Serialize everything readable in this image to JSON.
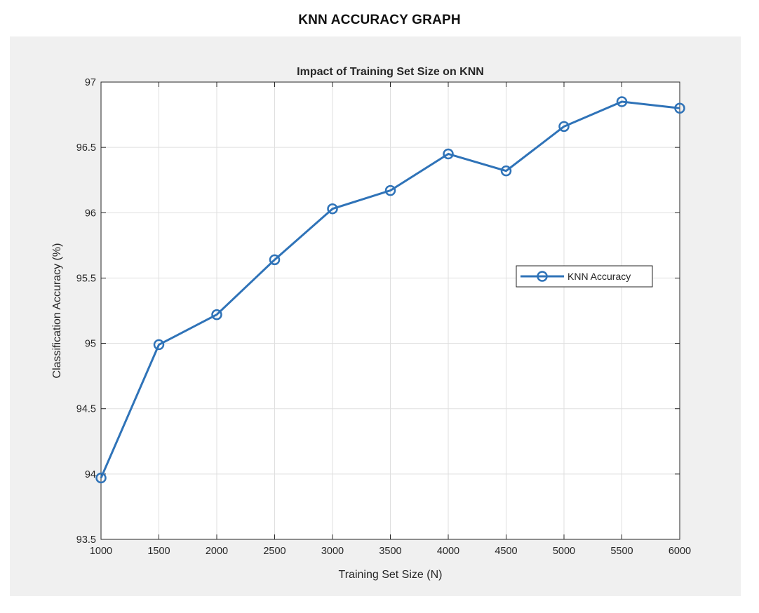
{
  "page": {
    "title": "KNN ACCURACY GRAPH"
  },
  "colors": {
    "series": "#2f73b8",
    "grid": "#dfdfdf",
    "axes": "#262626",
    "figure_background": "#f0f0f0",
    "plot_background": "#ffffff"
  },
  "chart_data": {
    "type": "line",
    "title": "Impact of Training Set Size on KNN",
    "xlabel": "Training Set Size (N)",
    "ylabel": "Classification Accuracy (%)",
    "xlim": [
      1000,
      6000
    ],
    "ylim": [
      93.5,
      97
    ],
    "xticks": [
      "1000",
      "1500",
      "2000",
      "2500",
      "3000",
      "3500",
      "4000",
      "4500",
      "5000",
      "5500",
      "6000"
    ],
    "yticks": [
      "93.5",
      "94",
      "94.5",
      "95",
      "95.5",
      "96",
      "96.5",
      "97"
    ],
    "grid": true,
    "legend_position": "right",
    "x": [
      1000,
      1500,
      2000,
      2500,
      3000,
      3500,
      4000,
      4500,
      5000,
      5500,
      6000
    ],
    "series": [
      {
        "name": "KNN Accuracy",
        "marker": "circle",
        "values": [
          93.97,
          94.99,
          95.22,
          95.64,
          96.03,
          96.17,
          96.45,
          96.32,
          96.66,
          96.85,
          96.8
        ]
      }
    ]
  }
}
